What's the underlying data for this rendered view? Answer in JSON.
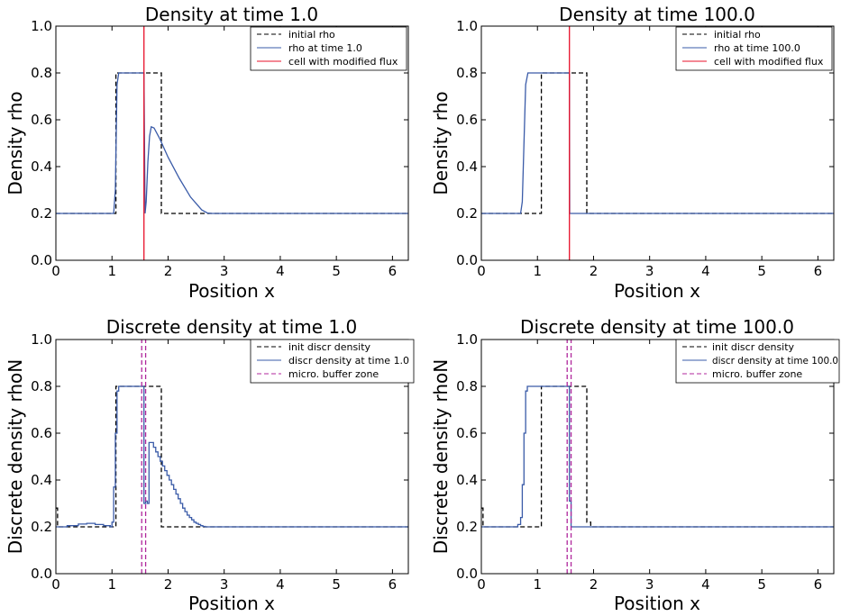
{
  "chart_data": [
    {
      "type": "line",
      "title": "Density at time 1.0",
      "xlabel": "Position x",
      "ylabel": "Density rho",
      "xlim": [
        0,
        6.283
      ],
      "ylim": [
        0,
        1.0
      ],
      "xticks": [
        "0",
        "1",
        "2",
        "3",
        "4",
        "5",
        "6"
      ],
      "yticks": [
        "0.0",
        "0.2",
        "0.4",
        "0.6",
        "0.8",
        "1.0"
      ],
      "legend_position": "top-right",
      "series": [
        {
          "name": "initial rho",
          "color": "#000000",
          "style": "dashed",
          "x": [
            0,
            1.07,
            1.07,
            1.88,
            1.88,
            6.283
          ],
          "y": [
            0.2,
            0.2,
            0.8,
            0.8,
            0.2,
            0.2
          ]
        },
        {
          "name": "rho at time 1.0",
          "color": "#3a5ba8",
          "style": "solid",
          "x": [
            0,
            1.03,
            1.06,
            1.09,
            1.12,
            1.57,
            1.59,
            1.61,
            1.64,
            1.67,
            1.7,
            1.75,
            1.85,
            2.0,
            2.2,
            2.4,
            2.6,
            2.7,
            2.78,
            6.283
          ],
          "y": [
            0.2,
            0.2,
            0.3,
            0.75,
            0.8,
            0.8,
            0.2,
            0.25,
            0.42,
            0.53,
            0.57,
            0.565,
            0.52,
            0.44,
            0.35,
            0.27,
            0.215,
            0.202,
            0.2,
            0.2
          ]
        },
        {
          "name": "cell with modified flux",
          "color": "#e8102a",
          "style": "solid",
          "x": [
            1.57,
            1.57
          ],
          "y": [
            0,
            1.0
          ]
        }
      ]
    },
    {
      "type": "line",
      "title": "Density at time 100.0",
      "xlabel": "Position x",
      "ylabel": "Density rho",
      "xlim": [
        0,
        6.283
      ],
      "ylim": [
        0,
        1.0
      ],
      "xticks": [
        "0",
        "1",
        "2",
        "3",
        "4",
        "5",
        "6"
      ],
      "yticks": [
        "0.0",
        "0.2",
        "0.4",
        "0.6",
        "0.8",
        "1.0"
      ],
      "legend_position": "top-right",
      "series": [
        {
          "name": "initial rho",
          "color": "#000000",
          "style": "dashed",
          "x": [
            0,
            1.07,
            1.07,
            1.88,
            1.88,
            6.283
          ],
          "y": [
            0.2,
            0.2,
            0.8,
            0.8,
            0.2,
            0.2
          ]
        },
        {
          "name": "rho at time 100.0",
          "color": "#3a5ba8",
          "style": "solid",
          "x": [
            0,
            0.7,
            0.73,
            0.76,
            0.79,
            0.83,
            1.57,
            1.575,
            6.283
          ],
          "y": [
            0.2,
            0.2,
            0.25,
            0.5,
            0.75,
            0.8,
            0.8,
            0.2,
            0.2
          ]
        },
        {
          "name": "cell with modified flux",
          "color": "#e8102a",
          "style": "solid",
          "x": [
            1.57,
            1.57
          ],
          "y": [
            0,
            1.0
          ]
        }
      ]
    },
    {
      "type": "line",
      "title": "Discrete density at time 1.0",
      "xlabel": "Position x",
      "ylabel": "Discrete density rhoN",
      "xlim": [
        0,
        6.283
      ],
      "ylim": [
        0,
        1.0
      ],
      "xticks": [
        "0",
        "1",
        "2",
        "3",
        "4",
        "5",
        "6"
      ],
      "yticks": [
        "0.0",
        "0.2",
        "0.4",
        "0.6",
        "0.8",
        "1.0"
      ],
      "legend_position": "top-right",
      "series": [
        {
          "name": "init discr density",
          "color": "#000000",
          "style": "dashed",
          "x": [
            0,
            0.03,
            0.03,
            1.07,
            1.07,
            1.88,
            1.88,
            6.283
          ],
          "y": [
            0.28,
            0.28,
            0.2,
            0.2,
            0.8,
            0.8,
            0.2,
            0.2
          ]
        },
        {
          "name": "discr density at time 1.0",
          "color": "#3a5ba8",
          "style": "steps",
          "x": [
            0,
            0.2,
            0.4,
            0.55,
            0.7,
            0.85,
            0.97,
            1.0,
            1.03,
            1.06,
            1.09,
            1.12,
            1.57,
            1.6,
            1.63,
            1.66,
            1.7,
            1.74,
            1.78,
            1.82,
            1.86,
            1.9,
            1.94,
            1.98,
            2.02,
            2.06,
            2.1,
            2.14,
            2.18,
            2.22,
            2.26,
            2.3,
            2.34,
            2.38,
            2.42,
            2.46,
            2.5,
            2.54,
            2.58,
            2.62,
            2.66,
            2.7,
            6.283
          ],
          "y": [
            0.2,
            0.205,
            0.212,
            0.215,
            0.21,
            0.205,
            0.2,
            0.22,
            0.37,
            0.6,
            0.78,
            0.8,
            0.3,
            0.31,
            0.3,
            0.56,
            0.56,
            0.54,
            0.52,
            0.5,
            0.48,
            0.46,
            0.44,
            0.42,
            0.4,
            0.38,
            0.36,
            0.34,
            0.32,
            0.3,
            0.28,
            0.265,
            0.25,
            0.24,
            0.23,
            0.22,
            0.215,
            0.21,
            0.205,
            0.202,
            0.2,
            0.2,
            0.2
          ]
        },
        {
          "name": "micro. buffer zone",
          "color": "#b0279c",
          "style": "dashed",
          "x": [
            1.53,
            1.53,
            1.6,
            1.6
          ],
          "y": [
            0,
            1.0,
            0,
            1.0
          ]
        }
      ]
    },
    {
      "type": "line",
      "title": "Discrete density at time 100.0",
      "xlabel": "Position x",
      "ylabel": "Discrete density rhoN",
      "xlim": [
        0,
        6.283
      ],
      "ylim": [
        0,
        1.0
      ],
      "xticks": [
        "0",
        "1",
        "2",
        "3",
        "4",
        "5",
        "6"
      ],
      "yticks": [
        "0.0",
        "0.2",
        "0.4",
        "0.6",
        "0.8",
        "1.0"
      ],
      "legend_position": "top-right",
      "series": [
        {
          "name": "init discr density",
          "color": "#000000",
          "style": "dashed",
          "x": [
            0,
            0.03,
            0.03,
            1.07,
            1.07,
            1.88,
            1.88,
            1.95,
            1.95,
            6.283
          ],
          "y": [
            0.28,
            0.28,
            0.2,
            0.2,
            0.8,
            0.8,
            0.22,
            0.22,
            0.2,
            0.2
          ]
        },
        {
          "name": "discr density at time 100.0",
          "color": "#3a5ba8",
          "style": "steps",
          "x": [
            0,
            0.65,
            0.7,
            0.73,
            0.76,
            0.79,
            0.82,
            1.57,
            1.6,
            1.63,
            6.283
          ],
          "y": [
            0.2,
            0.21,
            0.24,
            0.38,
            0.6,
            0.78,
            0.8,
            0.31,
            0.2,
            0.2,
            0.2
          ]
        },
        {
          "name": "micro. buffer zone",
          "color": "#b0279c",
          "style": "dashed",
          "x": [
            1.53,
            1.53,
            1.6,
            1.6
          ],
          "y": [
            0,
            1.0,
            0,
            1.0
          ]
        }
      ]
    }
  ]
}
